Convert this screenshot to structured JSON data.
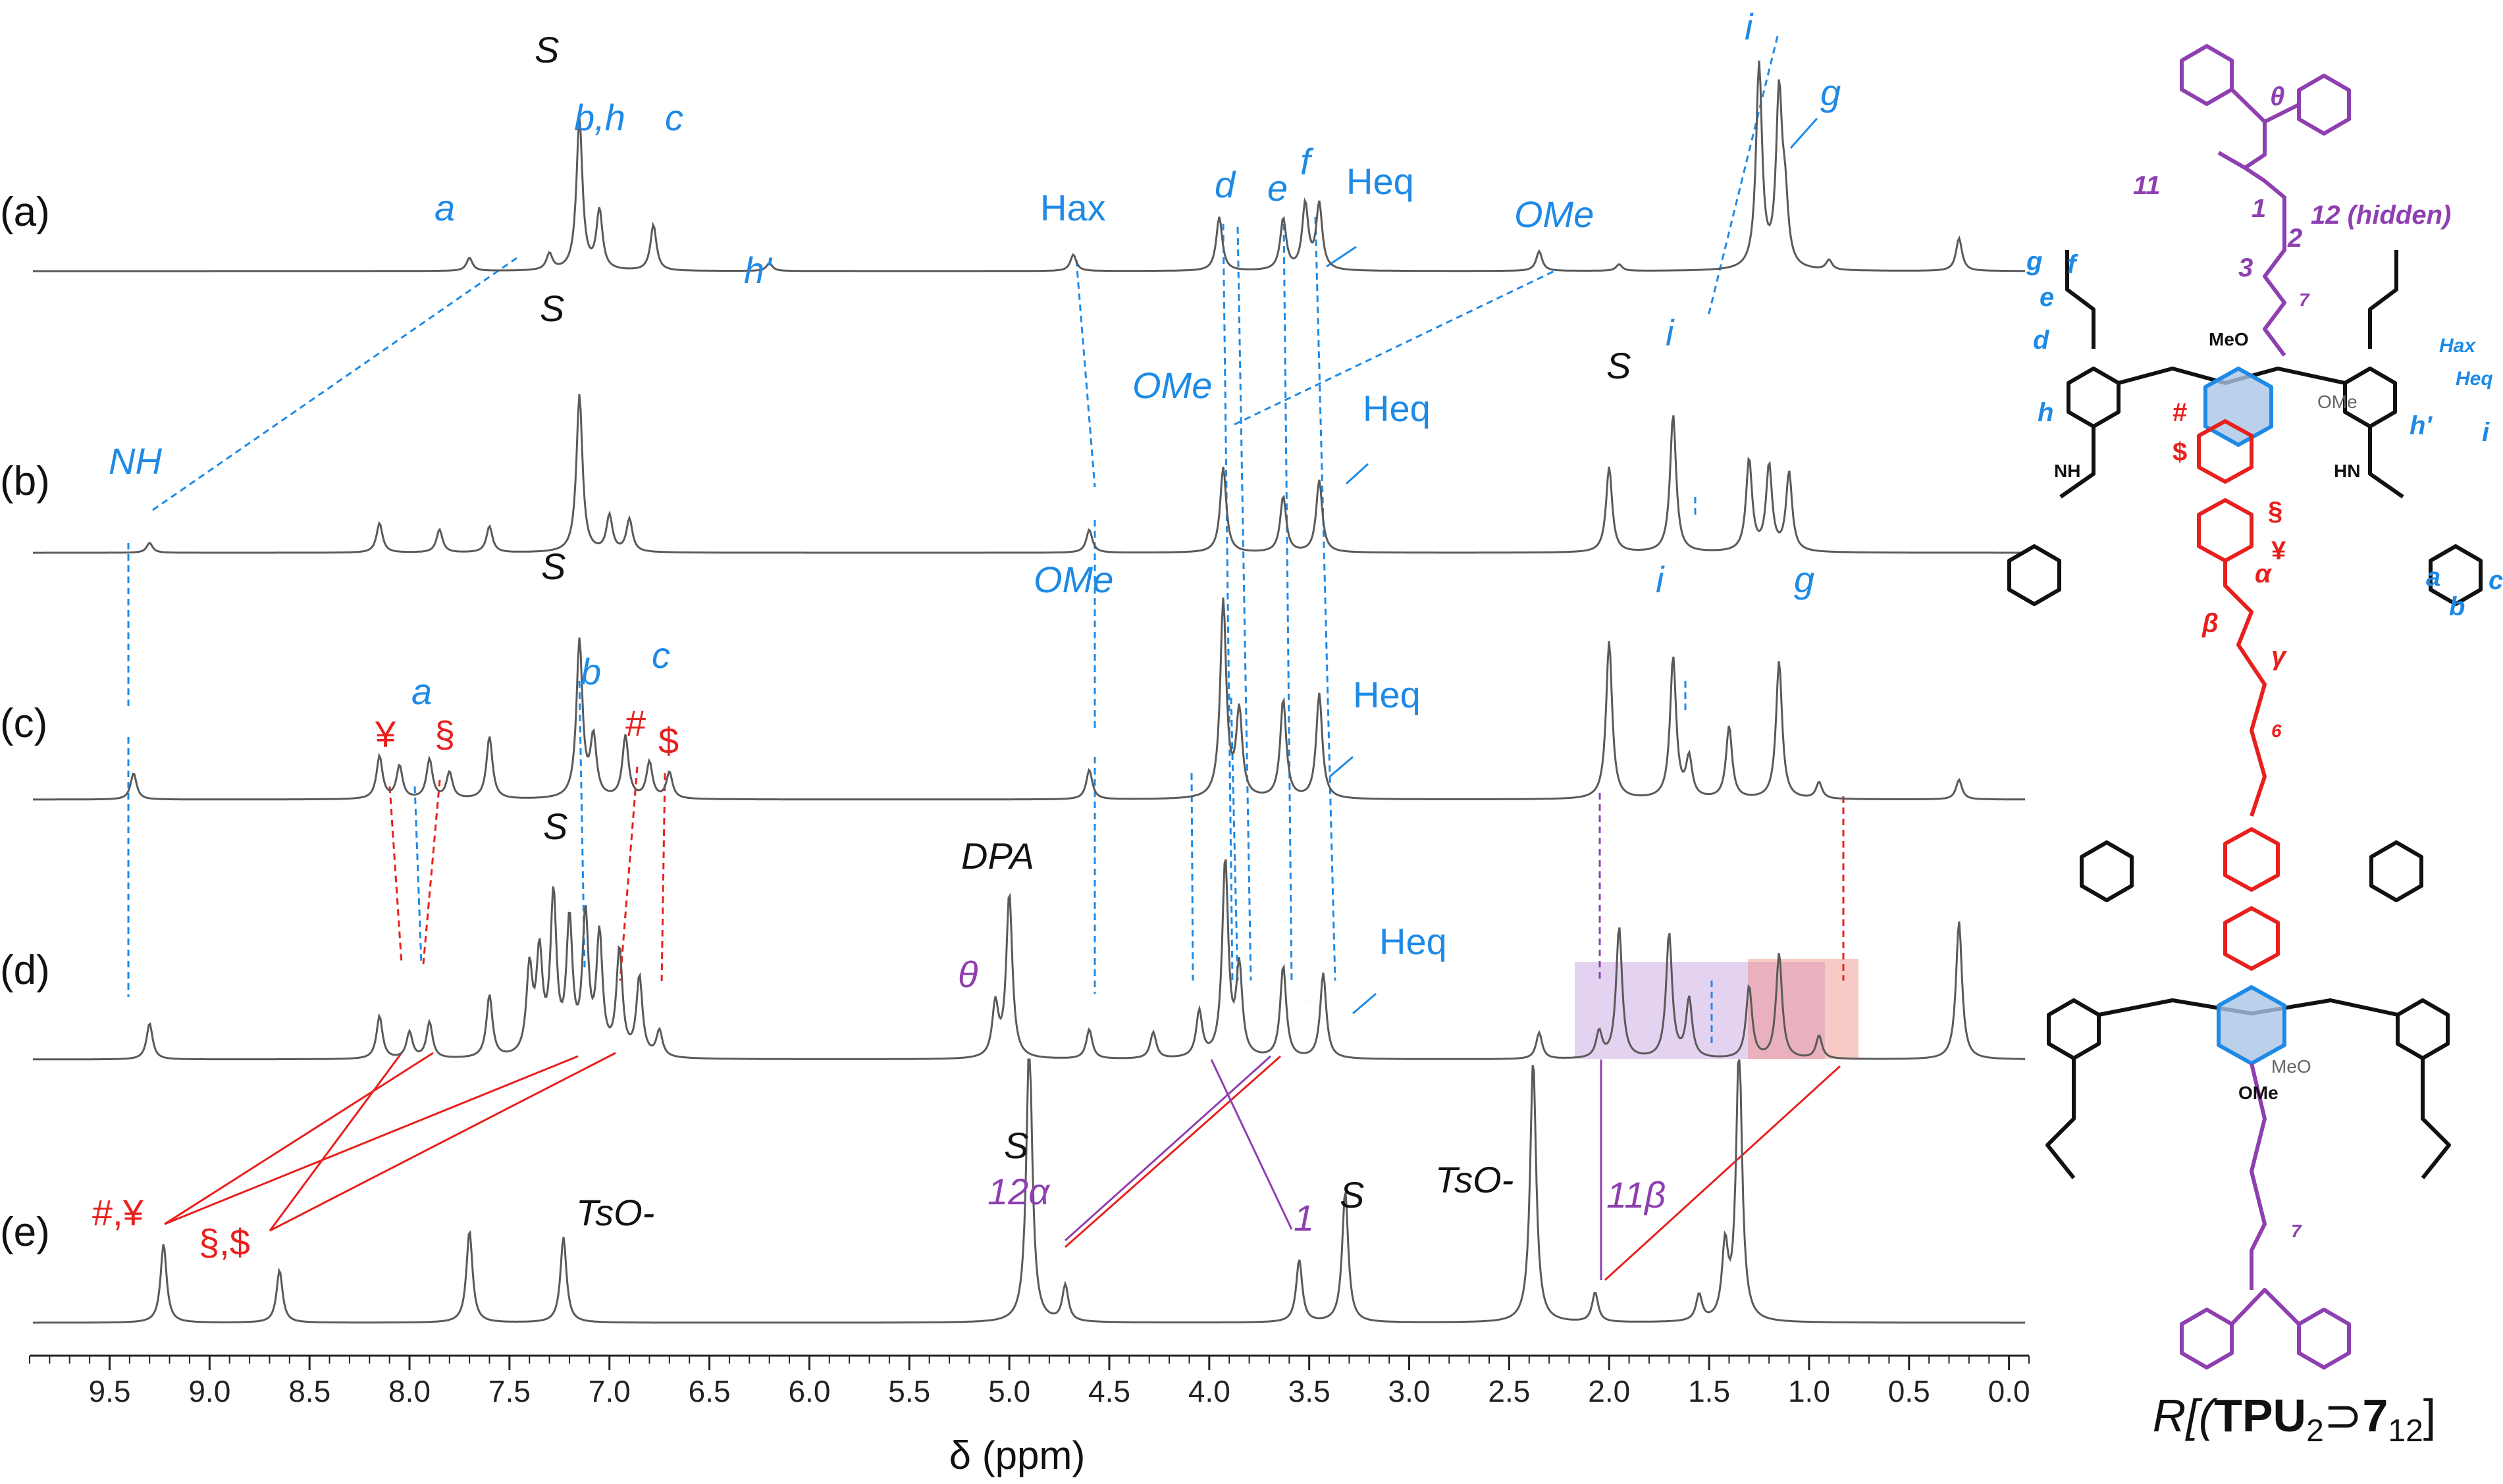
{
  "chart_data": {
    "type": "line",
    "title": "",
    "xlabel": "δ (ppm)",
    "xlim": [
      9.9,
      -0.1
    ],
    "x_ticks": [
      "9.5",
      "9.0",
      "8.5",
      "8.0",
      "7.5",
      "7.0",
      "6.5",
      "6.0",
      "5.5",
      "5.0",
      "4.5",
      "4.0",
      "3.5",
      "3.0",
      "2.5",
      "2.0",
      "1.5",
      "1.0",
      "0.5",
      "0.0"
    ],
    "x_tick_values": [
      9.5,
      9.0,
      8.5,
      8.0,
      7.5,
      7.0,
      6.5,
      6.0,
      5.5,
      5.0,
      4.5,
      4.0,
      3.5,
      3.0,
      2.5,
      2.0,
      1.5,
      1.0,
      0.5,
      0.0
    ],
    "grid": false,
    "series": [
      {
        "name": "(a)",
        "peaks": [
          [
            7.7,
            20
          ],
          [
            7.3,
            25
          ],
          [
            7.15,
            230
          ],
          [
            7.05,
            90
          ],
          [
            6.78,
            70
          ],
          [
            6.2,
            12
          ],
          [
            4.68,
            25
          ],
          [
            3.95,
            82
          ],
          [
            3.63,
            78
          ],
          [
            3.52,
            100
          ],
          [
            3.45,
            100
          ],
          [
            2.35,
            30
          ],
          [
            1.95,
            10
          ],
          [
            1.25,
            310
          ],
          [
            1.15,
            260
          ],
          [
            1.12,
            90
          ],
          [
            0.9,
            15
          ],
          [
            0.25,
            50
          ]
        ]
      },
      {
        "name": "(b)",
        "peaks": [
          [
            9.3,
            15
          ],
          [
            8.15,
            45
          ],
          [
            7.85,
            35
          ],
          [
            7.6,
            40
          ],
          [
            7.15,
            240
          ],
          [
            7.0,
            55
          ],
          [
            6.9,
            50
          ],
          [
            4.6,
            35
          ],
          [
            3.93,
            130
          ],
          [
            3.63,
            85
          ],
          [
            3.45,
            110
          ],
          [
            2.0,
            130
          ],
          [
            1.68,
            210
          ],
          [
            1.3,
            140
          ],
          [
            1.2,
            130
          ],
          [
            1.1,
            120
          ]
        ]
      },
      {
        "name": "(c)",
        "peaks": [
          [
            9.38,
            40
          ],
          [
            8.15,
            65
          ],
          [
            8.05,
            50
          ],
          [
            7.9,
            60
          ],
          [
            7.8,
            40
          ],
          [
            7.6,
            95
          ],
          [
            7.15,
            240
          ],
          [
            7.08,
            90
          ],
          [
            6.92,
            95
          ],
          [
            6.8,
            55
          ],
          [
            6.7,
            40
          ],
          [
            4.6,
            45
          ],
          [
            3.93,
            300
          ],
          [
            3.85,
            130
          ],
          [
            3.63,
            150
          ],
          [
            3.45,
            160
          ],
          [
            2.0,
            240
          ],
          [
            1.68,
            215
          ],
          [
            1.6,
            60
          ],
          [
            1.4,
            110
          ],
          [
            1.15,
            210
          ],
          [
            0.95,
            25
          ],
          [
            0.25,
            30
          ]
        ]
      },
      {
        "name": "(d)",
        "peaks": [
          [
            9.3,
            55
          ],
          [
            8.15,
            65
          ],
          [
            8.0,
            40
          ],
          [
            7.9,
            55
          ],
          [
            7.6,
            95
          ],
          [
            7.4,
            130
          ],
          [
            7.35,
            150
          ],
          [
            7.28,
            240
          ],
          [
            7.2,
            200
          ],
          [
            7.12,
            210
          ],
          [
            7.05,
            180
          ],
          [
            6.95,
            160
          ],
          [
            6.85,
            120
          ],
          [
            6.75,
            40
          ],
          [
            5.07,
            80
          ],
          [
            5.0,
            250
          ],
          [
            4.6,
            45
          ],
          [
            4.28,
            40
          ],
          [
            4.05,
            70
          ],
          [
            3.92,
            300
          ],
          [
            3.85,
            135
          ],
          [
            3.63,
            140
          ],
          [
            3.43,
            130
          ],
          [
            2.35,
            40
          ],
          [
            2.05,
            40
          ],
          [
            1.95,
            200
          ],
          [
            1.7,
            190
          ],
          [
            1.6,
            90
          ],
          [
            1.3,
            110
          ],
          [
            1.15,
            160
          ],
          [
            0.95,
            35
          ],
          [
            0.25,
            210
          ]
        ]
      },
      {
        "name": "(e)",
        "peaks": [
          [
            9.23,
            120
          ],
          [
            8.65,
            80
          ],
          [
            7.7,
            140
          ],
          [
            7.23,
            130
          ],
          [
            4.9,
            430
          ],
          [
            4.72,
            55
          ],
          [
            3.55,
            95
          ],
          [
            3.32,
            200
          ],
          [
            2.38,
            400
          ],
          [
            2.07,
            45
          ],
          [
            1.55,
            40
          ],
          [
            1.42,
            110
          ],
          [
            1.35,
            420
          ]
        ]
      }
    ],
    "annotations": [
      {
        "text": "S",
        "trace": "(a)",
        "x": 7.15
      },
      {
        "text": "b,h",
        "trace": "(a)",
        "x": 6.95
      },
      {
        "text": "c",
        "trace": "(a)",
        "x": 6.68
      },
      {
        "text": "a",
        "trace": "(a)",
        "x": 7.95
      },
      {
        "text": "h'",
        "trace": "(a)",
        "x": 6.25
      },
      {
        "text": "Hax",
        "trace": "(a)",
        "x": 4.72
      },
      {
        "text": "d",
        "trace": "(a)",
        "x": 3.95
      },
      {
        "text": "e",
        "trace": "(a)",
        "x": 3.68
      },
      {
        "text": "f",
        "trace": "(a)",
        "x": 3.55
      },
      {
        "text": "Heq",
        "trace": "(a)",
        "x": 3.3
      },
      {
        "text": "OMe",
        "trace": "(a)",
        "x": 2.3
      },
      {
        "text": "i",
        "trace": "(a)",
        "x": 1.48
      },
      {
        "text": "g",
        "trace": "(a)",
        "x": 0.98
      },
      {
        "text": "NH",
        "trace": "(b)",
        "x": 9.38
      },
      {
        "text": "S",
        "trace": "(b)",
        "x": 7.25
      },
      {
        "text": "OMe",
        "trace": "(b)",
        "x": 4.05
      },
      {
        "text": "Heq",
        "trace": "(b)",
        "x": 3.35
      },
      {
        "text": "S",
        "trace": "(b)",
        "x": 2.12
      },
      {
        "text": "i",
        "trace": "(b)",
        "x": 1.75
      },
      {
        "text": "S",
        "trace": "(c)",
        "x": 7.22
      },
      {
        "text": "¥",
        "trace": "(c)",
        "x": 8.05
      },
      {
        "text": "a",
        "trace": "(c)",
        "x": 7.92
      },
      {
        "text": "§",
        "trace": "(c)",
        "x": 7.8
      },
      {
        "text": "b",
        "trace": "(c)",
        "x": 7.08
      },
      {
        "text": "c",
        "trace": "(c)",
        "x": 6.7
      },
      {
        "text": "#",
        "trace": "(c)",
        "x": 6.85
      },
      {
        "text": "$",
        "trace": "(c)",
        "x": 6.68
      },
      {
        "text": "OMe",
        "trace": "(c)",
        "x": 4.5
      },
      {
        "text": "Heq",
        "trace": "(c)",
        "x": 3.25
      },
      {
        "text": "i",
        "trace": "(c)",
        "x": 1.7
      },
      {
        "text": "g",
        "trace": "(c)",
        "x": 1.05
      },
      {
        "text": "S",
        "trace": "(d)",
        "x": 7.32
      },
      {
        "text": "DPA",
        "trace": "(d)",
        "x": 5.0
      },
      {
        "text": "θ",
        "trace": "(d)",
        "x": 5.22
      },
      {
        "text": "Heq",
        "trace": "(d)",
        "x": 3.22
      },
      {
        "text": "#,¥",
        "trace": "(e)",
        "x": 9.45
      },
      {
        "text": "§,$",
        "trace": "(e)",
        "x": 8.3
      },
      {
        "text": "TsO-",
        "trace": "(e)",
        "x": 7.28
      },
      {
        "text": "S",
        "trace": "(e)",
        "x": 4.92
      },
      {
        "text": "12α",
        "trace": "(e)",
        "x": 4.62
      },
      {
        "text": "1",
        "trace": "(e)",
        "x": 3.6
      },
      {
        "text": "S",
        "trace": "(e)",
        "x": 3.32
      },
      {
        "text": "TsO-",
        "trace": "(e)",
        "x": 2.65
      },
      {
        "text": "11β",
        "trace": "(e)",
        "x": 1.95
      }
    ]
  },
  "trace_labels": [
    "(a)",
    "(b)",
    "(c)",
    "(d)",
    "(e)"
  ],
  "structure_labels": {
    "theta": "θ",
    "n11": "11",
    "n1": "1",
    "n12": "12 (hidden)",
    "n2": "2",
    "n3": "3",
    "sub7": "7",
    "sub6": "6",
    "g": "g",
    "f": "f",
    "e": "e",
    "d": "d",
    "Hax": "Hax",
    "Heq": "Heq",
    "h": "h",
    "hp": "h'",
    "i": "i",
    "a": "a",
    "b": "b",
    "c": "c",
    "alpha": "α",
    "beta": "β",
    "gamma": "γ",
    "hash": "#",
    "dollar": "$",
    "sect": "§",
    "yen": "¥",
    "ome": "OMe",
    "meo": "MeO",
    "nh": "NH",
    "hn": "HN"
  },
  "caption": {
    "prefix": "R[(",
    "bold": "TPU",
    "sub2": "2",
    "sup": "⊃",
    "bold7": "7",
    "sub12": "12",
    "suffix": "]"
  },
  "colors": {
    "blue": "#1e8ae6",
    "red": "#e8201d",
    "purple": "#8e3fb0",
    "trace": "#5a5a5a"
  }
}
